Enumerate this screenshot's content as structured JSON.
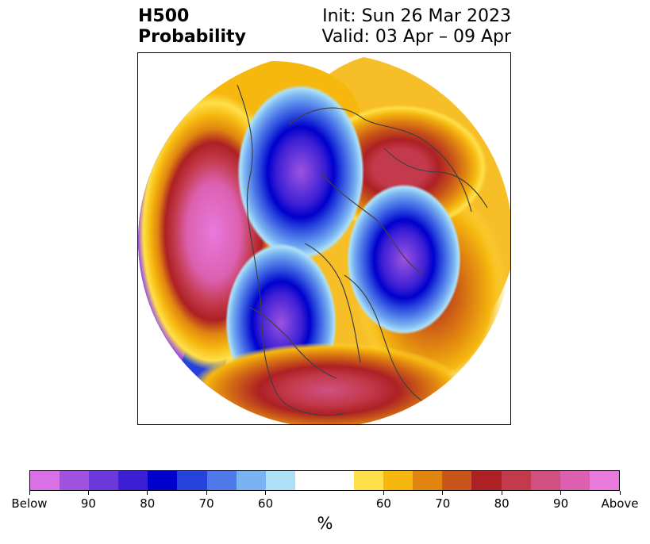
{
  "header": {
    "title_line1": "H500",
    "title_line2": "Probability",
    "init_text": "Init: Sun 26 Mar 2023",
    "valid_text": "Valid: 03 Apr – 09 Apr"
  },
  "map": {
    "projection": "north polar stereographic",
    "fields": [
      {
        "label": "above",
        "region": "northeast Pacific / Gulf of Alaska",
        "peak": "Above"
      },
      {
        "label": "below",
        "region": "northern Canada / Baffin Island",
        "peak": "90"
      },
      {
        "label": "above",
        "region": "Siberia / Arctic Russia",
        "peak": "90"
      },
      {
        "label": "below",
        "region": "Svalbard / Barents Sea",
        "peak": "90"
      },
      {
        "label": "below",
        "region": "Rocky Mountains / central Canada",
        "peak": "90"
      },
      {
        "label": "above",
        "region": "southeastern United States",
        "peak": "90"
      },
      {
        "label": "above",
        "region": "North Atlantic / Europe",
        "peak": "80"
      }
    ]
  },
  "colorbar": {
    "colors": [
      "#da70e6",
      "#9f52df",
      "#6a38db",
      "#3c1fd4",
      "#0000cd",
      "#2542dc",
      "#4f79e8",
      "#79b3f2",
      "#aee0f7",
      "#ffffff",
      "#ffffff",
      "#ffe04a",
      "#f6b80f",
      "#e08510",
      "#c85519",
      "#ad2024",
      "#c33a4c",
      "#d05082",
      "#dc60b0",
      "#e879dd"
    ],
    "tick_labels": [
      "Below",
      "90",
      "80",
      "70",
      "60",
      "60",
      "70",
      "80",
      "90",
      "Above"
    ],
    "unit_label": "%"
  }
}
